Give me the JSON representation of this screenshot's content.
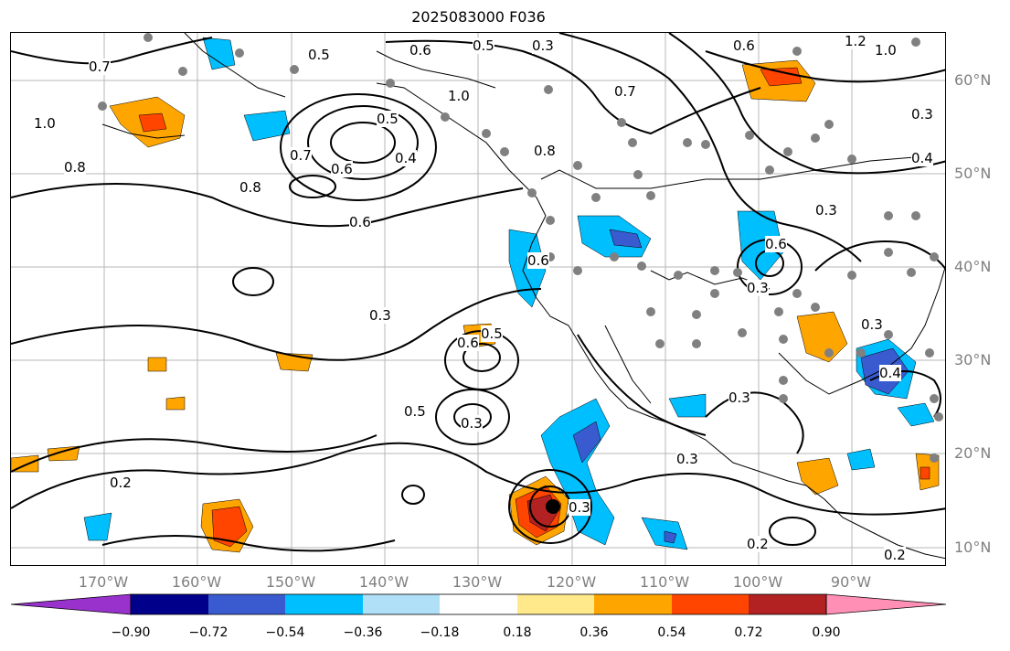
{
  "title": "2025083000 F036",
  "map": {
    "lat_labels": [
      "60°N",
      "50°N",
      "40°N",
      "30°N",
      "20°N",
      "10°N"
    ],
    "lon_labels": [
      "170°W",
      "160°W",
      "150°W",
      "140°W",
      "130°W",
      "120°W",
      "110°W",
      "100°W",
      "90°W"
    ],
    "contour_labels": [
      "0.6",
      "0.5",
      "0.3",
      "0.7",
      "1.0",
      "0.8",
      "0.4",
      "0.6",
      "0.8",
      "0.7",
      "0.6",
      "0.5",
      "0.3",
      "0.5",
      "0.6",
      "0.3",
      "0.5",
      "0.3",
      "0.3",
      "0.3",
      "0.2",
      "0.3",
      "0.4",
      "0.3",
      "0.6",
      "0.3",
      "0.2",
      "0.2",
      "0.8",
      "0.3",
      "0.5",
      "0.4",
      "1.2",
      "1.0",
      "0.6",
      "0.6",
      "0.7",
      "1.0"
    ],
    "gridlines": true,
    "colors": {
      "land_outline": "#000000",
      "grid": "#808080",
      "contour": "#000000",
      "points": "#808080"
    }
  },
  "colorbar": {
    "ticks": [
      "−0.90",
      "−0.72",
      "−0.54",
      "−0.36",
      "−0.18",
      "0.18",
      "0.36",
      "0.54",
      "0.72",
      "0.90"
    ],
    "colors": [
      "#9932cc",
      "#00008b",
      "#3a5bcf",
      "#00bfff",
      "#b0e0f8",
      "#ffffff",
      "#ffe98a",
      "#ffa500",
      "#ff4500",
      "#b22222",
      "#ff8fb5"
    ]
  }
}
